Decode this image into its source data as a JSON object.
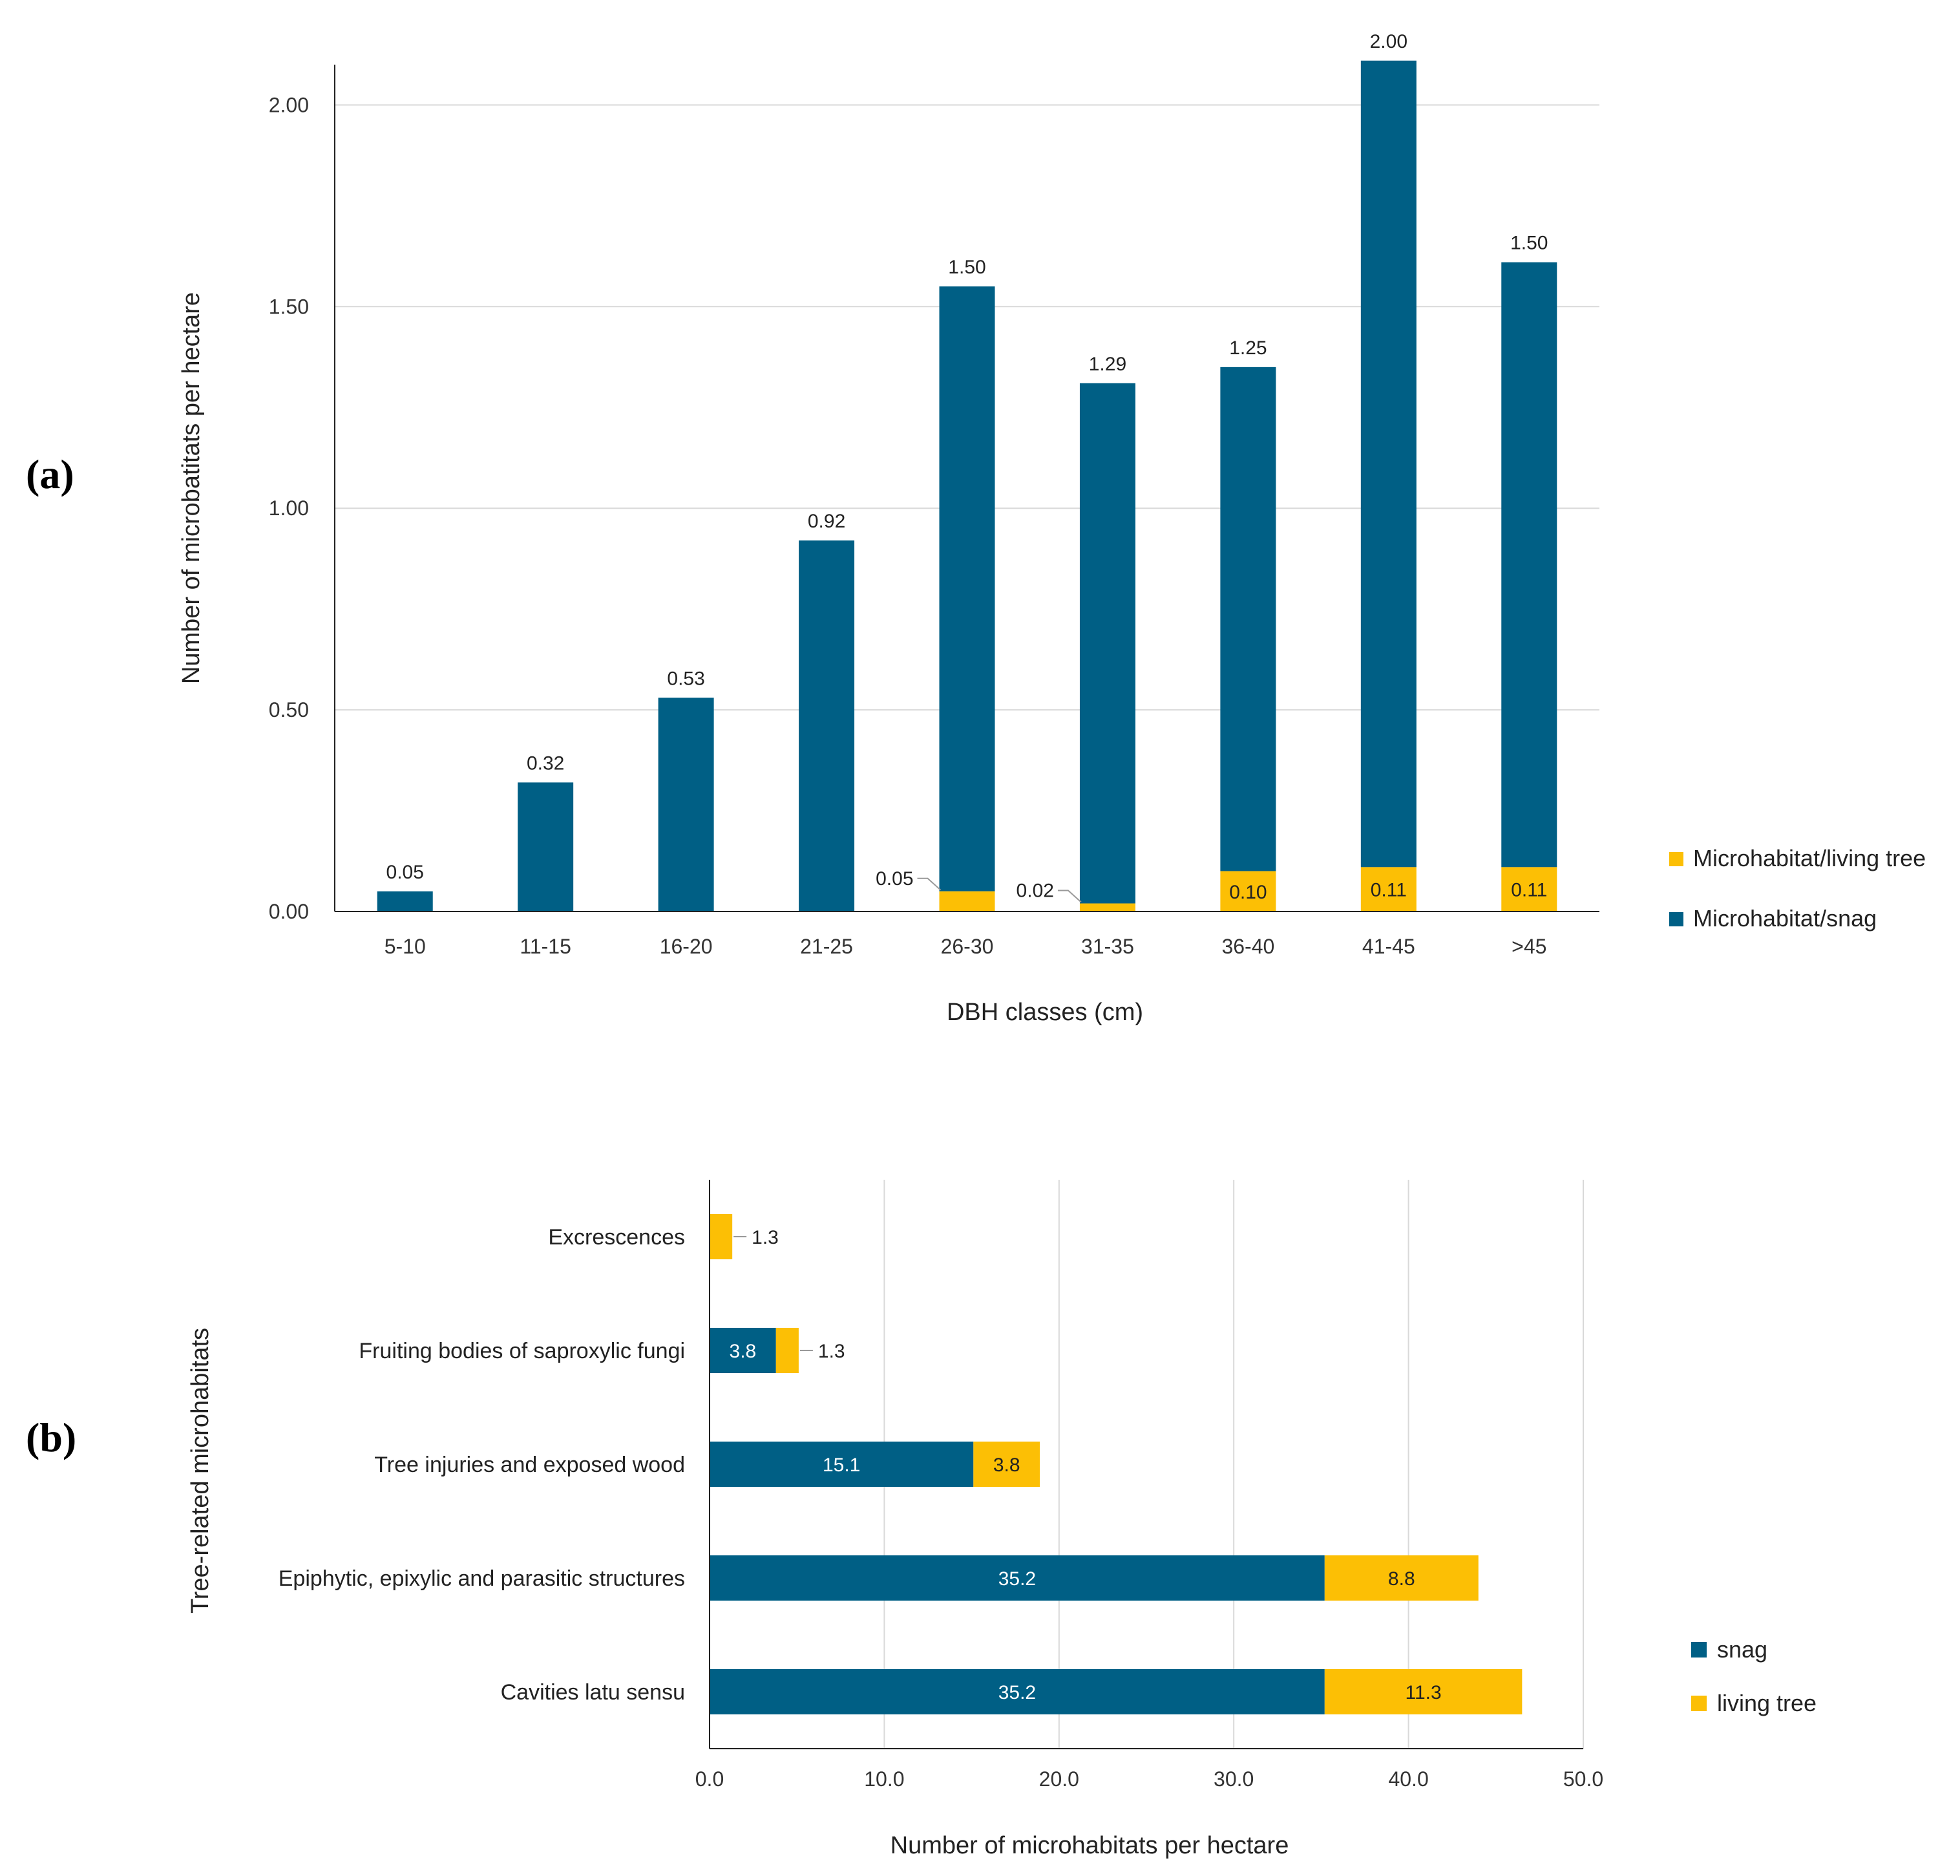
{
  "colors": {
    "snag": "#005f85",
    "living": "#fcbf05"
  },
  "chart_data": [
    {
      "panel_label": "(a)",
      "type": "bar",
      "stacked": true,
      "xlabel": "DBH classes (cm)",
      "ylabel": "Number of microbatitats per hectare",
      "ylim": [
        0,
        2.1
      ],
      "yticks": [
        "0.00",
        "0.50",
        "1.00",
        "1.50",
        "2.00"
      ],
      "grid": true,
      "legend_position": "right",
      "categories": [
        "5-10",
        "11-15",
        "16-20",
        "21-25",
        "26-30",
        "31-35",
        "36-40",
        "41-45",
        ">45"
      ],
      "series": [
        {
          "name": "Microhabitat/living tree",
          "values": [
            0,
            0,
            0,
            0,
            0.05,
            0.02,
            0.1,
            0.11,
            0.11
          ],
          "labels": [
            "",
            "",
            "",
            "",
            "0.05",
            "0.02",
            "0.10",
            "0.11",
            "0.11"
          ]
        },
        {
          "name": "Microhabitat/snag",
          "values": [
            0.05,
            0.32,
            0.53,
            0.92,
            1.5,
            1.29,
            1.25,
            2.0,
            1.5
          ],
          "labels": [
            "0.05",
            "0.32",
            "0.53",
            "0.92",
            "1.50",
            "1.29",
            "1.25",
            "2.00",
            "1.50"
          ]
        }
      ]
    },
    {
      "panel_label": "(b)",
      "type": "bar",
      "orientation": "horizontal",
      "stacked": true,
      "xlabel": "Number of microhabitats per hectare",
      "ylabel": "Tree-related microhabitats",
      "xlim": [
        0,
        50
      ],
      "xticks": [
        "0.0",
        "10.0",
        "20.0",
        "30.0",
        "40.0",
        "50.0"
      ],
      "grid": true,
      "legend_position": "right",
      "categories": [
        "Excrescences",
        "Fruiting bodies of saproxylic fungi",
        "Tree injuries and exposed wood",
        "Epiphytic, epixylic and parasitic structures",
        "Cavities latu sensu"
      ],
      "series": [
        {
          "name": "snag",
          "values": [
            0,
            3.8,
            15.1,
            35.2,
            35.2
          ],
          "labels": [
            "",
            "3.8",
            "15.1",
            "35.2",
            "35.2"
          ]
        },
        {
          "name": "living tree",
          "values": [
            1.3,
            1.3,
            3.8,
            8.8,
            11.3
          ],
          "labels": [
            "1.3",
            "1.3",
            "3.8",
            "8.8",
            "11.3"
          ]
        }
      ]
    }
  ]
}
